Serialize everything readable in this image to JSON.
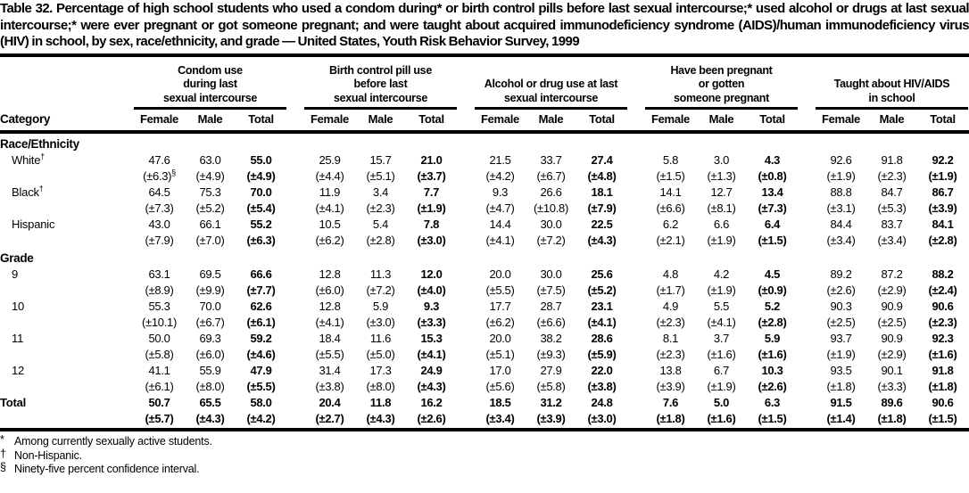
{
  "title": "Table 32. Percentage of high school students who used a condom during* or birth control pills before last sexual intercourse;* used alcohol or drugs at last sexual intercourse;* were ever pregnant or got someone pregnant; and were taught about acquired immunodeficiency syndrome (AIDS)/human immunodeficiency virus (HIV) in school, by sex, race/ethnicity, and grade — United States, Youth Risk Behavior Survey, 1999",
  "table": {
    "category_label": "Category",
    "groups": [
      {
        "title": "Condom use\nduring last\nsexual intercourse",
        "subcolumns": [
          "Female",
          "Male",
          "Total"
        ]
      },
      {
        "title": "Birth control pill use\nbefore last\nsexual intercourse",
        "subcolumns": [
          "Female",
          "Male",
          "Total"
        ]
      },
      {
        "title": "Alcohol or drug use at last\nsexual intercourse",
        "subcolumns": [
          "Female",
          "Male",
          "Total"
        ]
      },
      {
        "title": "Have been pregnant\nor gotten\nsomeone pregnant",
        "subcolumns": [
          "Female",
          "Male",
          "Total"
        ]
      },
      {
        "title": "Taught about HIV/AIDS\nin school",
        "subcolumns": [
          "Female",
          "Male",
          "Total"
        ]
      }
    ],
    "rows": [
      {
        "type": "section",
        "label": "Race/Ethnicity"
      },
      {
        "type": "data",
        "label": "White",
        "marker": "†",
        "ci_marker": "§",
        "ci_marker_col": 0,
        "values": [
          "47.6",
          "63.0",
          "55.0",
          "25.9",
          "15.7",
          "21.0",
          "21.5",
          "33.7",
          "27.4",
          "5.8",
          "3.0",
          "4.3",
          "92.6",
          "91.8",
          "92.2"
        ],
        "cis": [
          "(±6.3)",
          "(±4.9)",
          "(±4.9)",
          "(±4.4)",
          "(±5.1)",
          "(±3.7)",
          "(±4.2)",
          "(±6.7)",
          "(±4.8)",
          "(±1.5)",
          "(±1.3)",
          "(±0.8)",
          "(±1.9)",
          "(±2.3)",
          "(±1.9)"
        ]
      },
      {
        "type": "data",
        "label": "Black",
        "marker": "†",
        "values": [
          "64.5",
          "75.3",
          "70.0",
          "11.9",
          "3.4",
          "7.7",
          "9.3",
          "26.6",
          "18.1",
          "14.1",
          "12.7",
          "13.4",
          "88.8",
          "84.7",
          "86.7"
        ],
        "cis": [
          "(±7.3)",
          "(±5.2)",
          "(±5.4)",
          "(±4.1)",
          "(±2.3)",
          "(±1.9)",
          "(±4.7)",
          "(±10.8)",
          "(±7.9)",
          "(±6.6)",
          "(±8.1)",
          "(±7.3)",
          "(±3.1)",
          "(±5.3)",
          "(±3.9)"
        ]
      },
      {
        "type": "data",
        "label": "Hispanic",
        "values": [
          "43.0",
          "66.1",
          "55.2",
          "10.5",
          "5.4",
          "7.8",
          "14.4",
          "30.0",
          "22.5",
          "6.2",
          "6.6",
          "6.4",
          "84.4",
          "83.7",
          "84.1"
        ],
        "cis": [
          "(±7.9)",
          "(±7.0)",
          "(±6.3)",
          "(±6.2)",
          "(±2.8)",
          "(±3.0)",
          "(±4.1)",
          "(±7.2)",
          "(±4.3)",
          "(±2.1)",
          "(±1.9)",
          "(±1.5)",
          "(±3.4)",
          "(±3.4)",
          "(±2.8)"
        ]
      },
      {
        "type": "section",
        "label": "Grade"
      },
      {
        "type": "data",
        "label": "9",
        "values": [
          "63.1",
          "69.5",
          "66.6",
          "12.8",
          "11.3",
          "12.0",
          "20.0",
          "30.0",
          "25.6",
          "4.8",
          "4.2",
          "4.5",
          "89.2",
          "87.2",
          "88.2"
        ],
        "cis": [
          "(±8.9)",
          "(±9.9)",
          "(±7.7)",
          "(±6.0)",
          "(±7.2)",
          "(±4.0)",
          "(±5.5)",
          "(±7.5)",
          "(±5.2)",
          "(±1.7)",
          "(±1.9)",
          "(±0.9)",
          "(±2.6)",
          "(±2.9)",
          "(±2.4)"
        ]
      },
      {
        "type": "data",
        "label": "10",
        "values": [
          "55.3",
          "70.0",
          "62.6",
          "12.8",
          "5.9",
          "9.3",
          "17.7",
          "28.7",
          "23.1",
          "4.9",
          "5.5",
          "5.2",
          "90.3",
          "90.9",
          "90.6"
        ],
        "cis": [
          "(±10.1)",
          "(±6.7)",
          "(±6.1)",
          "(±4.1)",
          "(±3.0)",
          "(±3.3)",
          "(±6.2)",
          "(±6.6)",
          "(±4.1)",
          "(±2.3)",
          "(±4.1)",
          "(±2.8)",
          "(±2.5)",
          "(±2.5)",
          "(±2.3)"
        ]
      },
      {
        "type": "data",
        "label": "11",
        "values": [
          "50.0",
          "69.3",
          "59.2",
          "18.4",
          "11.6",
          "15.3",
          "20.0",
          "38.2",
          "28.6",
          "8.1",
          "3.7",
          "5.9",
          "93.7",
          "90.9",
          "92.3"
        ],
        "cis": [
          "(±5.8)",
          "(±6.0)",
          "(±4.6)",
          "(±5.5)",
          "(±5.0)",
          "(±4.1)",
          "(±5.1)",
          "(±9.3)",
          "(±5.9)",
          "(±2.3)",
          "(±1.6)",
          "(±1.6)",
          "(±1.9)",
          "(±2.9)",
          "(±1.6)"
        ]
      },
      {
        "type": "data",
        "label": "12",
        "values": [
          "41.1",
          "55.9",
          "47.9",
          "31.4",
          "17.3",
          "24.9",
          "17.0",
          "27.9",
          "22.0",
          "13.8",
          "6.7",
          "10.3",
          "93.5",
          "90.1",
          "91.8"
        ],
        "cis": [
          "(±6.1)",
          "(±8.0)",
          "(±5.5)",
          "(±3.8)",
          "(±8.0)",
          "(±4.3)",
          "(±5.6)",
          "(±5.8)",
          "(±3.8)",
          "(±3.9)",
          "(±1.9)",
          "(±2.6)",
          "(±1.8)",
          "(±3.3)",
          "(±1.8)"
        ]
      },
      {
        "type": "data",
        "label": "Total",
        "bold": true,
        "values": [
          "50.7",
          "65.5",
          "58.0",
          "20.4",
          "11.8",
          "16.2",
          "18.5",
          "31.2",
          "24.8",
          "7.6",
          "5.0",
          "6.3",
          "91.5",
          "89.6",
          "90.6"
        ],
        "cis": [
          "(±5.7)",
          "(±4.3)",
          "(±4.2)",
          "(±2.7)",
          "(±4.3)",
          "(±2.6)",
          "(±3.4)",
          "(±3.9)",
          "(±3.0)",
          "(±1.8)",
          "(±1.6)",
          "(±1.5)",
          "(±1.4)",
          "(±1.8)",
          "(±1.5)"
        ]
      }
    ]
  },
  "footnotes": [
    {
      "marker": "*",
      "text": "Among currently sexually active students."
    },
    {
      "marker": "†",
      "text": "Non-Hispanic."
    },
    {
      "marker": "§",
      "text": "Ninety-five percent confidence interval."
    }
  ]
}
